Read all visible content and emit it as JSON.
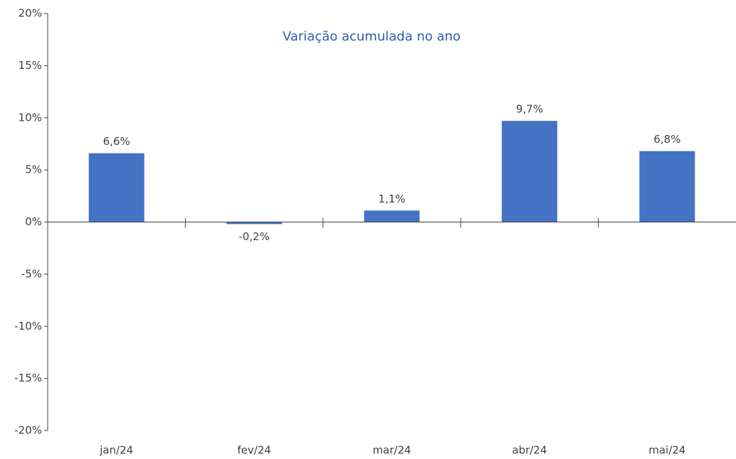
{
  "chart_data": {
    "type": "bar",
    "title": "Variação acumulada no ano",
    "categories": [
      "jan/24",
      "fev/24",
      "mar/24",
      "abr/24",
      "mai/24"
    ],
    "values": [
      6.6,
      -0.2,
      1.1,
      9.7,
      6.8
    ],
    "value_labels": [
      "6,6%",
      "-0,2%",
      "1,1%",
      "9,7%",
      "6,8%"
    ],
    "color": "#4472c4",
    "ylim": [
      -20,
      20
    ],
    "yticks": [
      {
        "value": -20,
        "label": "-20%"
      },
      {
        "value": -15,
        "label": "-15%"
      },
      {
        "value": -10,
        "label": "-10%"
      },
      {
        "value": -5,
        "label": "-5%"
      },
      {
        "value": 0,
        "label": "0%"
      },
      {
        "value": 5,
        "label": "5%"
      },
      {
        "value": 10,
        "label": "10%"
      },
      {
        "value": 15,
        "label": "15%"
      },
      {
        "value": 20,
        "label": "20%"
      }
    ],
    "grid": false
  }
}
